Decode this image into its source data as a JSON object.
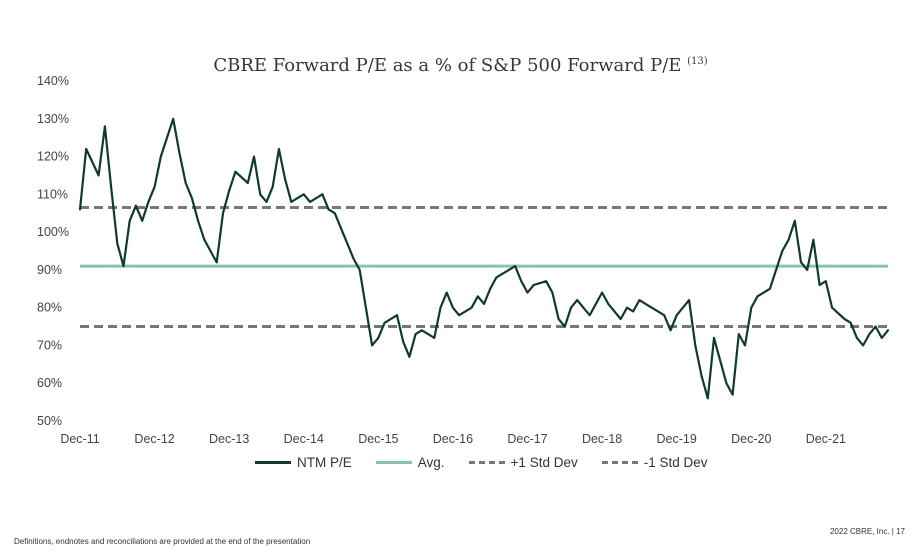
{
  "title": "CBRE Forward P/E as a % of S&P 500 Forward P/E",
  "title_sup": "(13)",
  "footer": {
    "left": "Definitions, endnotes and reconciliations are provided at the end of the presentation",
    "right": "2022 CBRE, Inc. | 17"
  },
  "colors": {
    "ntm": "#0e3b2b",
    "avg": "#8ac2b0",
    "std": "#777777"
  },
  "chart_data": {
    "type": "line",
    "title": "CBRE Forward P/E as a % of S&P 500 Forward P/E",
    "y_ticks": [
      "140%",
      "130%",
      "120%",
      "110%",
      "100%",
      "90%",
      "80%",
      "70%",
      "60%",
      "50%"
    ],
    "ylim": [
      50,
      140
    ],
    "x_ticks": [
      "Dec-11",
      "Dec-12",
      "Dec-13",
      "Dec-14",
      "Dec-15",
      "Dec-16",
      "Dec-17",
      "Dec-18",
      "Dec-19",
      "Dec-20",
      "Dec-21"
    ],
    "xlim": [
      "Dec-11",
      "Oct-22"
    ],
    "grid": false,
    "legend_position": "bottom",
    "series": [
      {
        "name": "NTM P/E",
        "style": "solid-dark",
        "x": [
          "Dec-11",
          "Jan-12",
          "Mar-12",
          "Apr-12",
          "May-12",
          "Jun-12",
          "Jul-12",
          "Aug-12",
          "Sep-12",
          "Oct-12",
          "Nov-12",
          "Dec-12",
          "Jan-13",
          "Mar-13",
          "Apr-13",
          "May-13",
          "Jun-13",
          "Jul-13",
          "Aug-13",
          "Sep-13",
          "Oct-13",
          "Nov-13",
          "Dec-13",
          "Jan-14",
          "Mar-14",
          "Apr-14",
          "May-14",
          "Jun-14",
          "Jul-14",
          "Aug-14",
          "Sep-14",
          "Oct-14",
          "Nov-14",
          "Dec-14",
          "Jan-15",
          "Mar-15",
          "Apr-15",
          "May-15",
          "Jun-15",
          "Jul-15",
          "Aug-15",
          "Sep-15",
          "Oct-15",
          "Nov-15",
          "Dec-15",
          "Jan-16",
          "Mar-16",
          "Apr-16",
          "May-16",
          "Jun-16",
          "Jul-16",
          "Aug-16",
          "Sep-16",
          "Oct-16",
          "Nov-16",
          "Dec-16",
          "Jan-17",
          "Mar-17",
          "Apr-17",
          "May-17",
          "Jun-17",
          "Jul-17",
          "Aug-17",
          "Sep-17",
          "Oct-17",
          "Nov-17",
          "Dec-17",
          "Jan-18",
          "Mar-18",
          "Apr-18",
          "May-18",
          "Jun-18",
          "Jul-18",
          "Aug-18",
          "Sep-18",
          "Oct-18",
          "Nov-18",
          "Dec-18",
          "Jan-19",
          "Mar-19",
          "Apr-19",
          "May-19",
          "Jun-19",
          "Jul-19",
          "Aug-19",
          "Sep-19",
          "Oct-19",
          "Nov-19",
          "Dec-19",
          "Jan-20",
          "Feb-20",
          "Mar-20",
          "Apr-20",
          "May-20",
          "Jun-20",
          "Jul-20",
          "Aug-20",
          "Sep-20",
          "Oct-20",
          "Nov-20",
          "Dec-20",
          "Jan-21",
          "Mar-21",
          "Apr-21",
          "May-21",
          "Jun-21",
          "Jul-21",
          "Aug-21",
          "Sep-21",
          "Oct-21",
          "Nov-21",
          "Dec-21",
          "Jan-22",
          "Mar-22",
          "Apr-22",
          "May-22",
          "Jun-22",
          "Jul-22",
          "Aug-22",
          "Sep-22",
          "Oct-22"
        ],
        "y": [
          106,
          122,
          115,
          128,
          112,
          97,
          91,
          103,
          107,
          103,
          108,
          112,
          120,
          130,
          121,
          113,
          109,
          103,
          98,
          95,
          92,
          105,
          111,
          116,
          113,
          120,
          110,
          108,
          112,
          122,
          114,
          108,
          109,
          110,
          108,
          110,
          106,
          105,
          101,
          97,
          93,
          90,
          80,
          70,
          72,
          76,
          78,
          71,
          67,
          73,
          74,
          73,
          72,
          80,
          84,
          80,
          78,
          80,
          83,
          81,
          85,
          88,
          89,
          90,
          91,
          87,
          84,
          86,
          87,
          84,
          77,
          75,
          80,
          82,
          80,
          78,
          81,
          84,
          81,
          77,
          80,
          79,
          82,
          81,
          80,
          79,
          78,
          74,
          78,
          80,
          82,
          70,
          62,
          56,
          72,
          66,
          60,
          57,
          73,
          70,
          80,
          83,
          85,
          90,
          95,
          98,
          103,
          92,
          90,
          98,
          86,
          87,
          80,
          77,
          76,
          72,
          70,
          73,
          75,
          72,
          74
        ]
      },
      {
        "name": "Avg.",
        "style": "solid-light",
        "value": 91
      },
      {
        "name": "+1 Std Dev",
        "style": "dashed",
        "value": 106.5
      },
      {
        "name": "-1 Std Dev",
        "style": "dashed",
        "value": 75
      }
    ]
  }
}
